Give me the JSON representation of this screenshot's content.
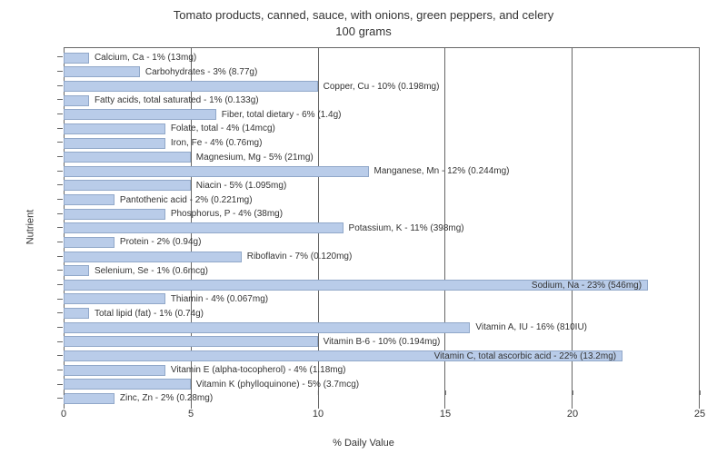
{
  "chart": {
    "type": "bar-horizontal",
    "title_line1": "Tomato products, canned, sauce, with onions, green peppers, and celery",
    "title_line2": "100 grams",
    "x_label": "% Daily Value",
    "y_label": "Nutrient",
    "x_min": 0,
    "x_max": 25,
    "x_tick_step": 5,
    "x_ticks": [
      "0",
      "5",
      "10",
      "15",
      "20",
      "25"
    ],
    "bar_color": "#b9cce9",
    "bar_border_color": "#91a8c9",
    "grid_color": "#666666",
    "background_color": "#ffffff",
    "label_fontsize": 10,
    "axis_fontsize": 11,
    "title_fontsize": 13,
    "nutrients": [
      {
        "label": "Calcium, Ca - 1% (13mg)",
        "value": 1,
        "inside": false
      },
      {
        "label": "Carbohydrates - 3% (8.77g)",
        "value": 3,
        "inside": false
      },
      {
        "label": "Copper, Cu - 10% (0.198mg)",
        "value": 10,
        "inside": false
      },
      {
        "label": "Fatty acids, total saturated - 1% (0.133g)",
        "value": 1,
        "inside": false
      },
      {
        "label": "Fiber, total dietary - 6% (1.4g)",
        "value": 6,
        "inside": false
      },
      {
        "label": "Folate, total - 4% (14mcg)",
        "value": 4,
        "inside": false
      },
      {
        "label": "Iron, Fe - 4% (0.76mg)",
        "value": 4,
        "inside": false
      },
      {
        "label": "Magnesium, Mg - 5% (21mg)",
        "value": 5,
        "inside": false
      },
      {
        "label": "Manganese, Mn - 12% (0.244mg)",
        "value": 12,
        "inside": false
      },
      {
        "label": "Niacin - 5% (1.095mg)",
        "value": 5,
        "inside": false
      },
      {
        "label": "Pantothenic acid - 2% (0.221mg)",
        "value": 2,
        "inside": false
      },
      {
        "label": "Phosphorus, P - 4% (38mg)",
        "value": 4,
        "inside": false
      },
      {
        "label": "Potassium, K - 11% (398mg)",
        "value": 11,
        "inside": false
      },
      {
        "label": "Protein - 2% (0.94g)",
        "value": 2,
        "inside": false
      },
      {
        "label": "Riboflavin - 7% (0.120mg)",
        "value": 7,
        "inside": false
      },
      {
        "label": "Selenium, Se - 1% (0.6mcg)",
        "value": 1,
        "inside": false
      },
      {
        "label": "Sodium, Na - 23% (546mg)",
        "value": 23,
        "inside": true
      },
      {
        "label": "Thiamin - 4% (0.067mg)",
        "value": 4,
        "inside": false
      },
      {
        "label": "Total lipid (fat) - 1% (0.74g)",
        "value": 1,
        "inside": false
      },
      {
        "label": "Vitamin A, IU - 16% (810IU)",
        "value": 16,
        "inside": false
      },
      {
        "label": "Vitamin B-6 - 10% (0.194mg)",
        "value": 10,
        "inside": false
      },
      {
        "label": "Vitamin C, total ascorbic acid - 22% (13.2mg)",
        "value": 22,
        "inside": true
      },
      {
        "label": "Vitamin E (alpha-tocopherol) - 4% (1.18mg)",
        "value": 4,
        "inside": false
      },
      {
        "label": "Vitamin K (phylloquinone) - 5% (3.7mcg)",
        "value": 5,
        "inside": false
      },
      {
        "label": "Zinc, Zn - 2% (0.28mg)",
        "value": 2,
        "inside": false
      }
    ]
  }
}
